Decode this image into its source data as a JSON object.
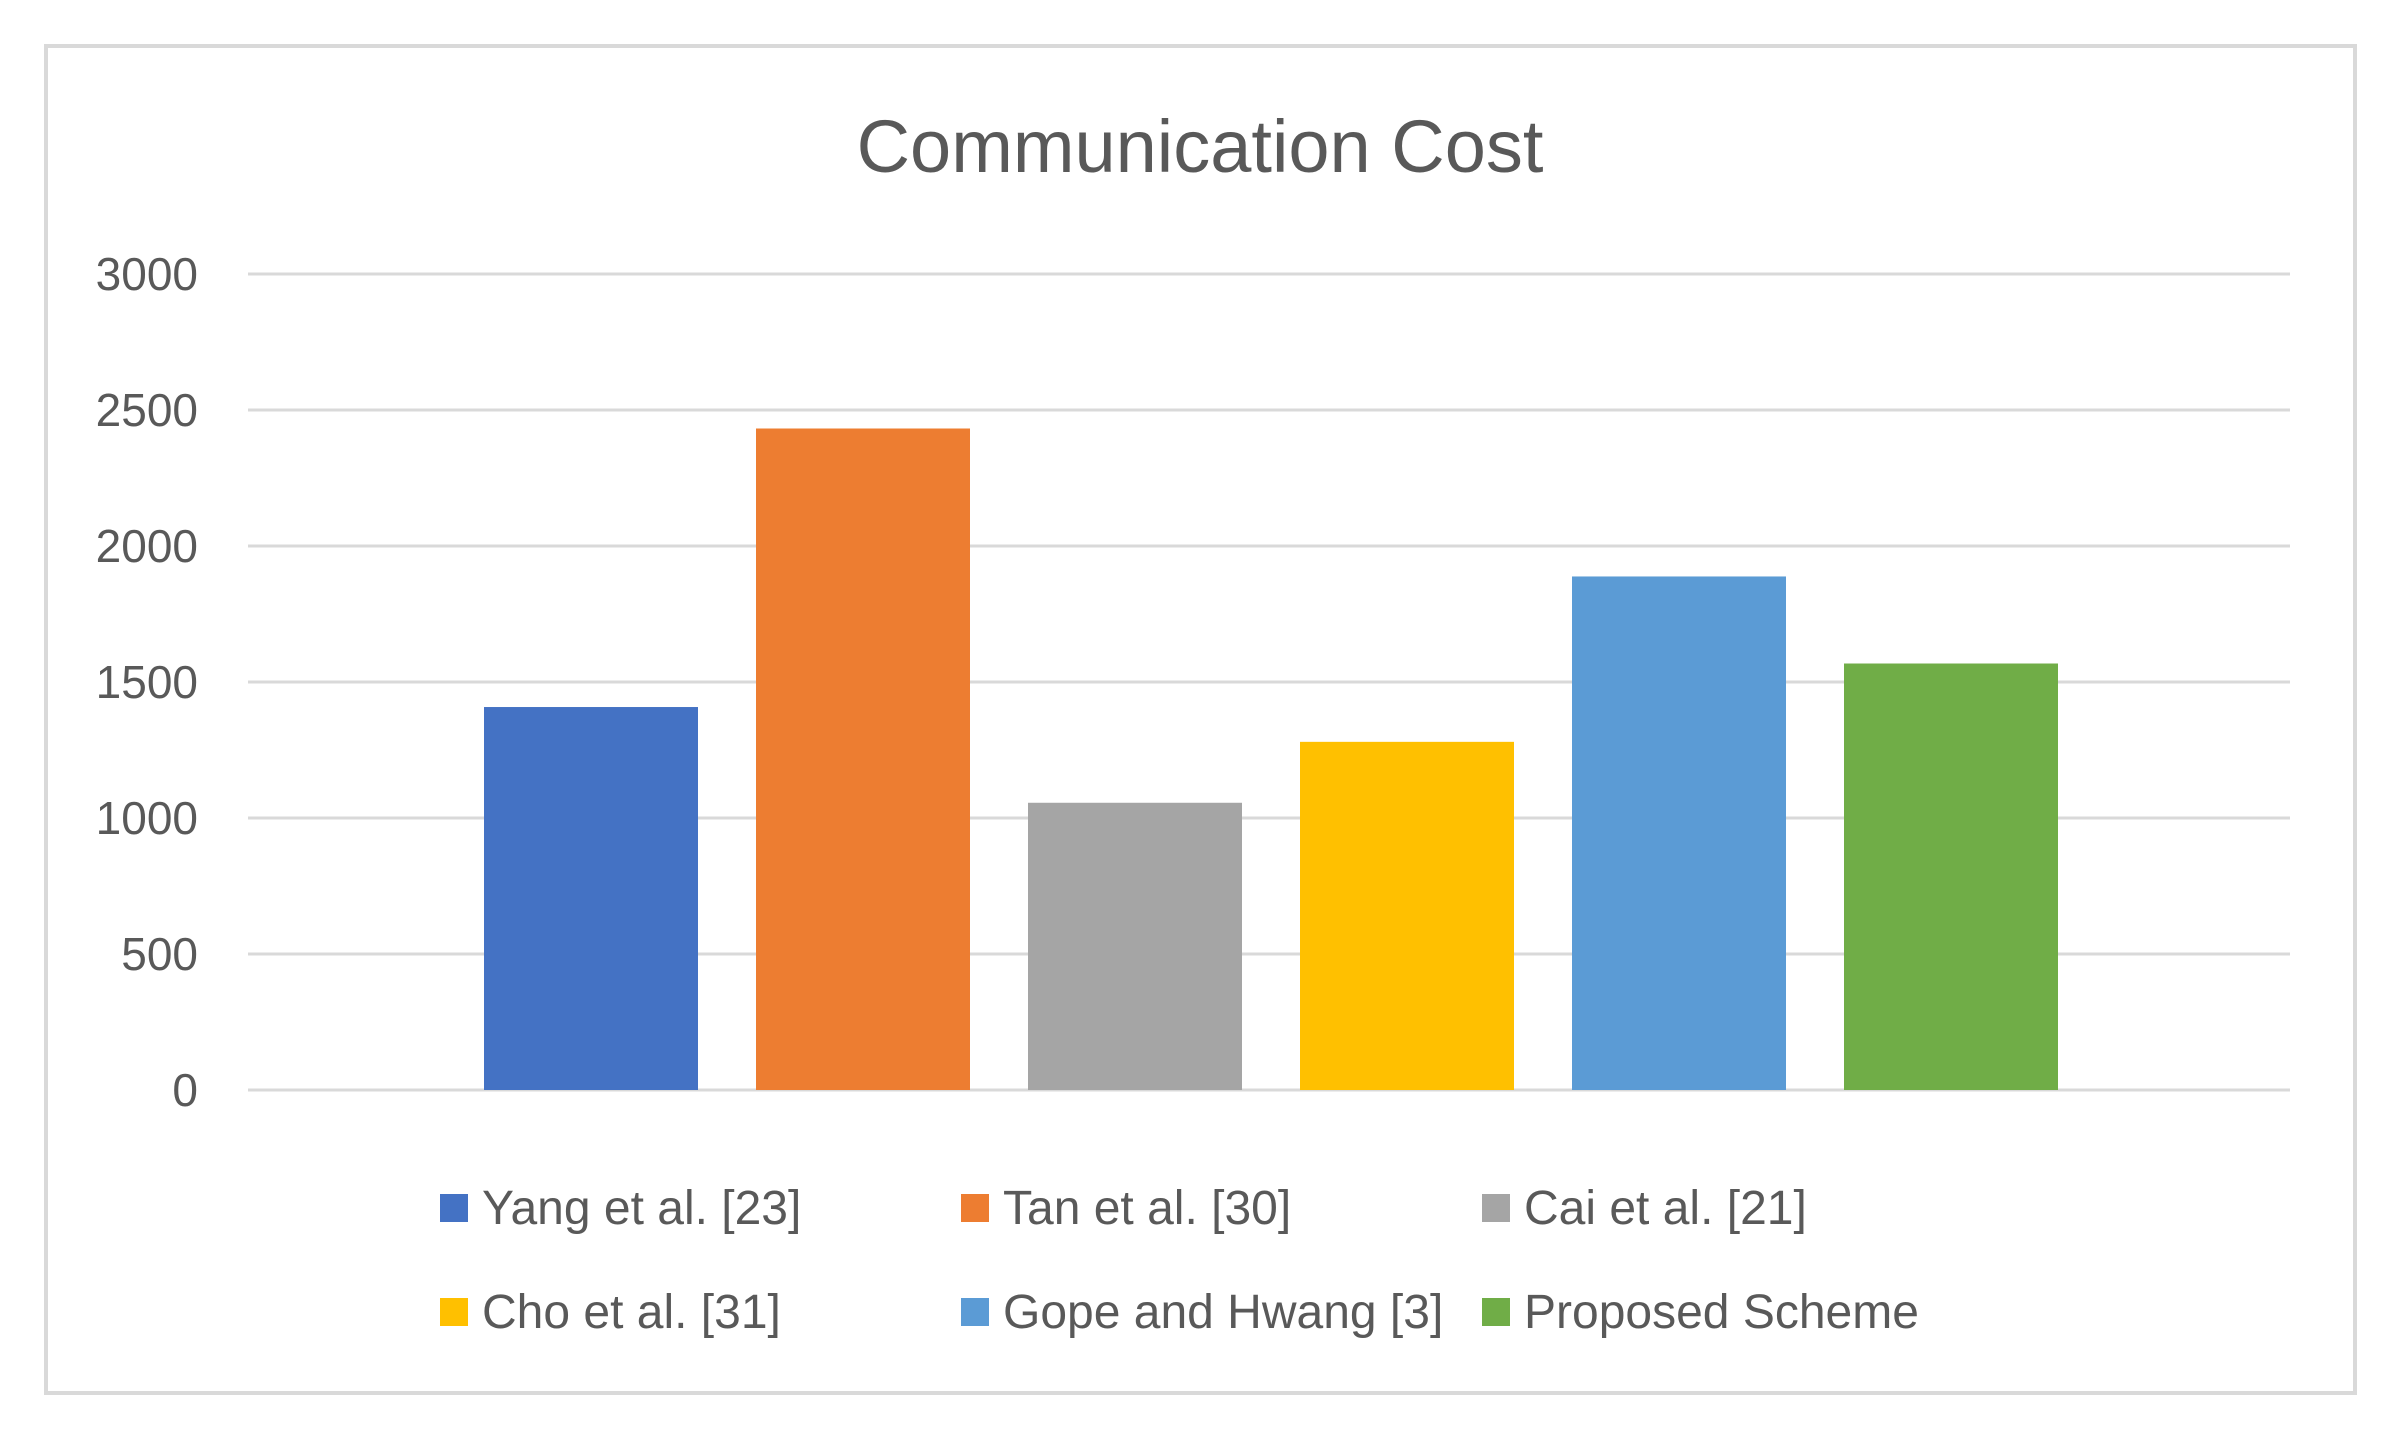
{
  "chart_data": {
    "type": "bar",
    "title": "Communication Cost",
    "xlabel": "",
    "ylabel": "",
    "ylim": [
      0,
      3000
    ],
    "yticks": [
      0,
      500,
      1000,
      1500,
      2000,
      2500,
      3000
    ],
    "grid": true,
    "legend_position": "bottom",
    "series": [
      {
        "name": "Yang et al. [23]",
        "value": 1408,
        "color": "#4472C4"
      },
      {
        "name": "Tan et al. [30]",
        "value": 2432,
        "color": "#ED7D31"
      },
      {
        "name": "Cai et al. [21]",
        "value": 1056,
        "color": "#A5A5A5"
      },
      {
        "name": "Cho et al. [31]",
        "value": 1280,
        "color": "#FFC000"
      },
      {
        "name": "Gope and Hwang [3]",
        "value": 1888,
        "color": "#5B9BD5"
      },
      {
        "name": "Proposed Scheme",
        "value": 1568,
        "color": "#70AD47"
      }
    ]
  },
  "colors": {
    "frame": "#D9D9D9",
    "grid": "#D9D9D9",
    "text": "#595959",
    "background": "#FFFFFF"
  }
}
